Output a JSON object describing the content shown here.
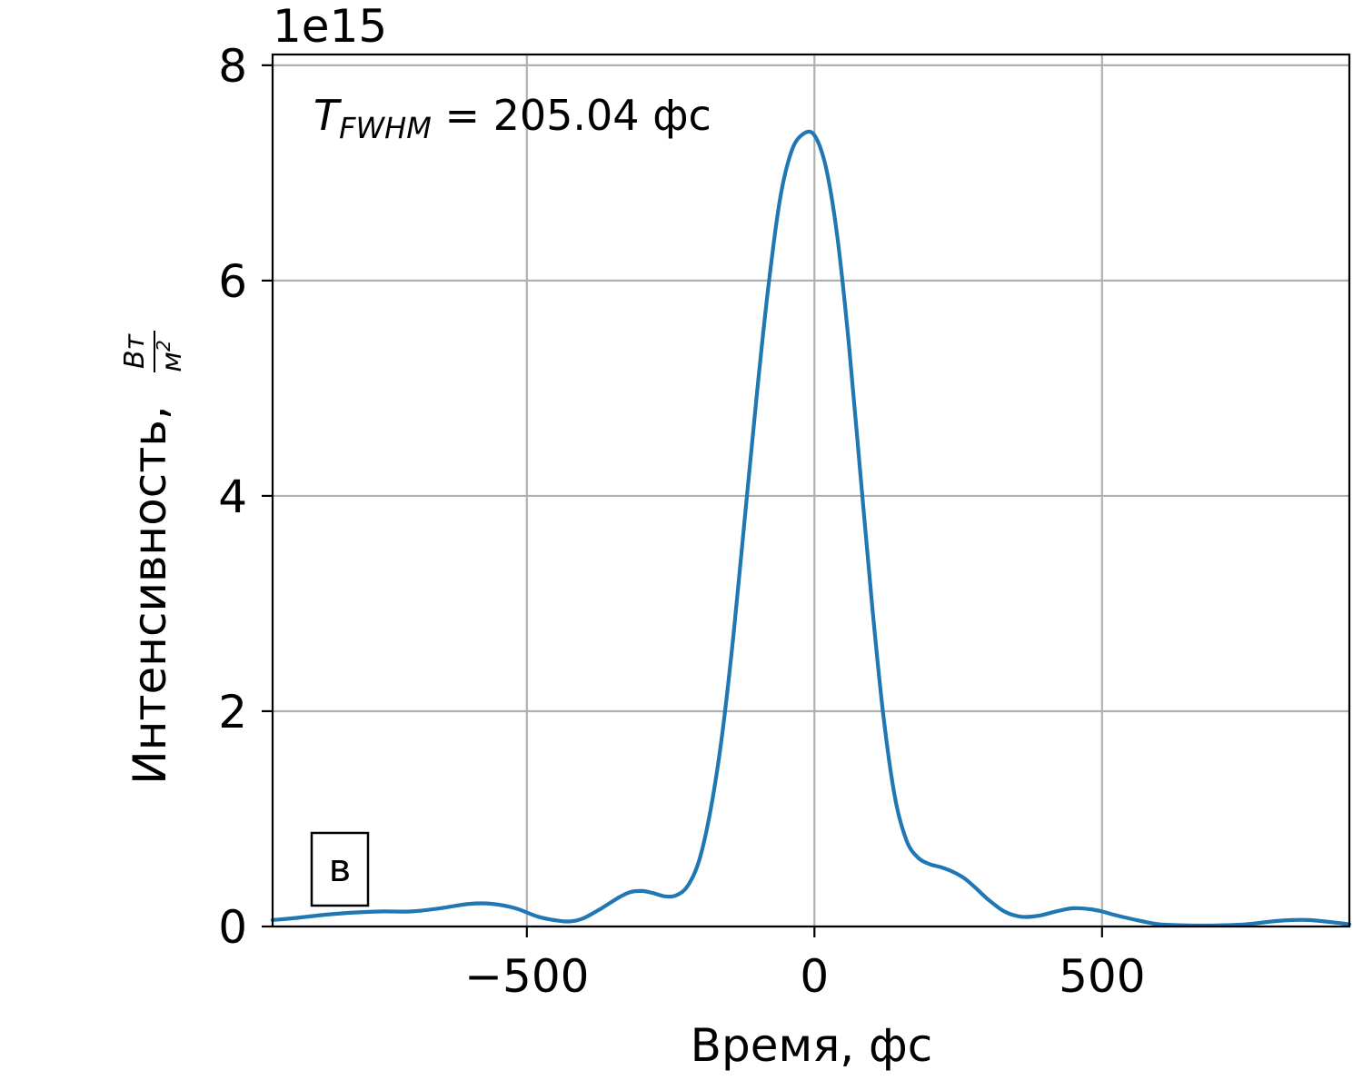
{
  "chart_data": {
    "type": "line",
    "xlabel": "Время, фс",
    "ylabel_text": "Интенсивность,",
    "ylabel_unit_num": "Вт",
    "ylabel_unit_den": "м",
    "ylabel_unit_den_exp": "2",
    "offset_text": "1e15",
    "annotation": {
      "symbol": "T",
      "subscript": "FWHM",
      "text": " = 205.04 фс"
    },
    "panel_label": "в",
    "xlim": [
      -942,
      930
    ],
    "ylim": [
      0,
      8.1
    ],
    "x_ticks": [
      -500,
      0,
      500
    ],
    "x_tick_labels": [
      "−500",
      "0",
      "500"
    ],
    "y_ticks": [
      0,
      2,
      4,
      6,
      8
    ],
    "y_tick_labels": [
      "0",
      "2",
      "4",
      "6",
      "8"
    ],
    "grid": true,
    "line_color": "#1f77b4",
    "series": [
      {
        "x": [
          -942,
          -900,
          -850,
          -800,
          -750,
          -700,
          -650,
          -600,
          -560,
          -520,
          -480,
          -440,
          -420,
          -400,
          -370,
          -340,
          -320,
          -300,
          -280,
          -260,
          -240,
          -220,
          -200,
          -180,
          -160,
          -140,
          -120,
          -100,
          -80,
          -60,
          -40,
          -20,
          0,
          20,
          40,
          60,
          80,
          100,
          120,
          140,
          160,
          180,
          200,
          220,
          240,
          260,
          280,
          300,
          330,
          360,
          390,
          420,
          450,
          480,
          500,
          520,
          560,
          600,
          650,
          700,
          750,
          800,
          830,
          860,
          900,
          930
        ],
        "y": [
          0.06,
          0.08,
          0.11,
          0.13,
          0.14,
          0.14,
          0.17,
          0.21,
          0.21,
          0.17,
          0.09,
          0.05,
          0.05,
          0.08,
          0.17,
          0.27,
          0.32,
          0.33,
          0.31,
          0.28,
          0.29,
          0.38,
          0.62,
          1.1,
          1.8,
          2.75,
          3.85,
          4.95,
          5.95,
          6.75,
          7.2,
          7.36,
          7.35,
          7.05,
          6.4,
          5.4,
          4.2,
          3.0,
          1.95,
          1.2,
          0.8,
          0.64,
          0.58,
          0.55,
          0.51,
          0.45,
          0.36,
          0.26,
          0.14,
          0.09,
          0.1,
          0.14,
          0.17,
          0.16,
          0.14,
          0.11,
          0.06,
          0.02,
          0.01,
          0.01,
          0.02,
          0.05,
          0.06,
          0.06,
          0.04,
          0.02
        ]
      }
    ]
  }
}
